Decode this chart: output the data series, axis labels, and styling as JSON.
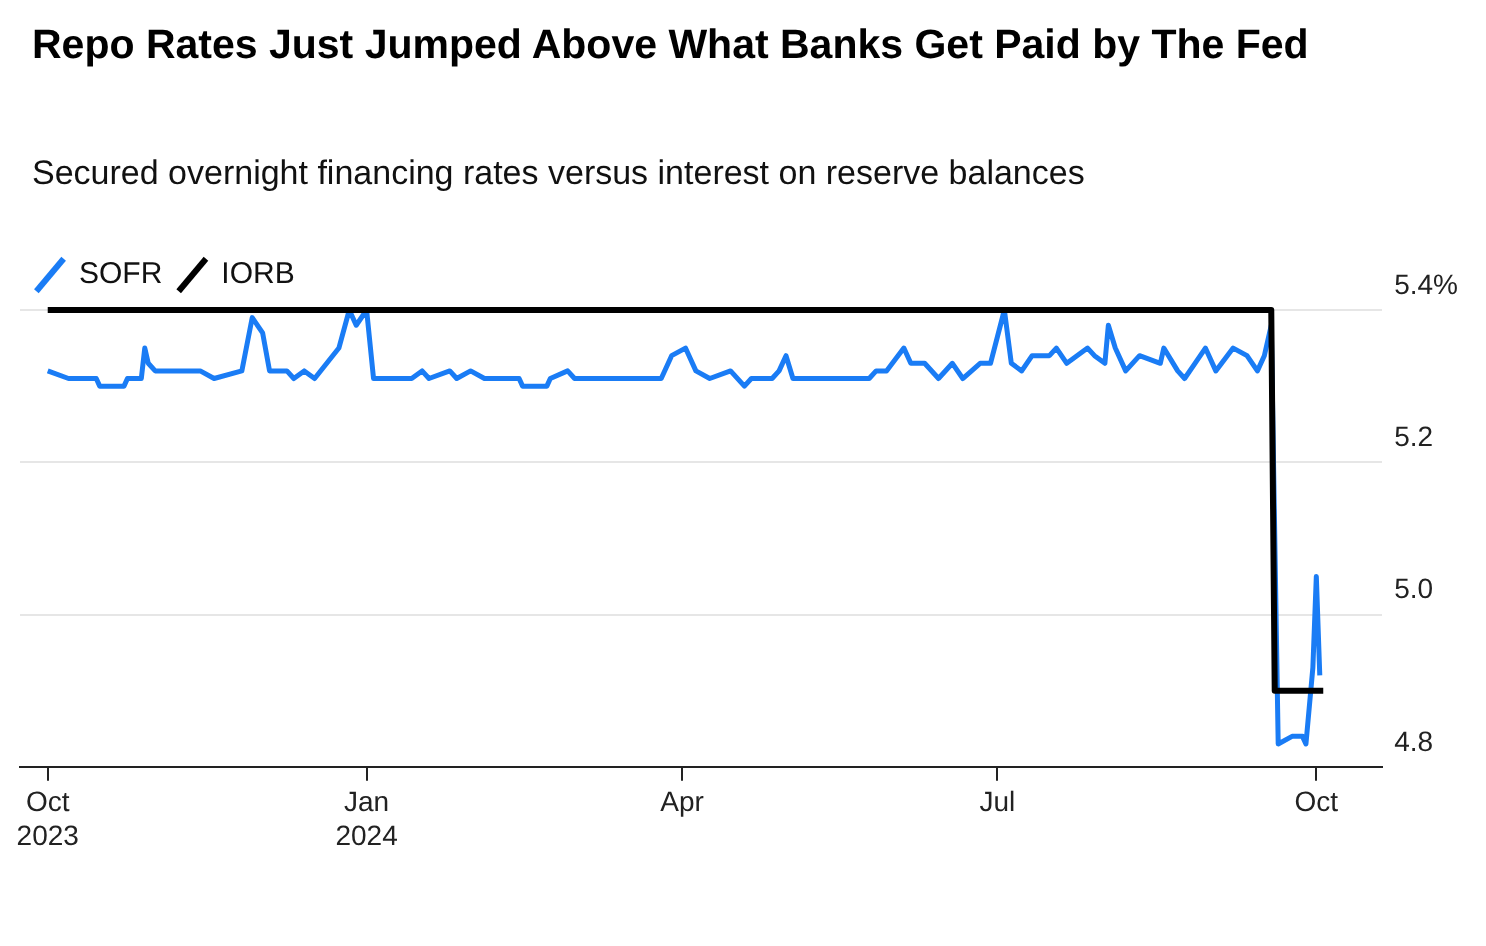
{
  "chart_data": {
    "type": "line",
    "title": "Repo Rates Just Jumped Above What Banks Get Paid by The Fed",
    "subtitle": "Secured overnight financing rates versus interest on reserve balances",
    "legend": "top left",
    "grid": "y",
    "marker": "none",
    "xlim": [
      "2023-09-23",
      "2024-10-20"
    ],
    "xticks": [
      {
        "value": "2023-10-01",
        "label": "Oct\n2023"
      },
      {
        "value": "2024-01-01",
        "label": "Jan\n2024"
      },
      {
        "value": "2024-04-01",
        "label": "Apr"
      },
      {
        "value": "2024-07-01",
        "label": "Jul"
      },
      {
        "value": "2024-10-01",
        "label": "Oct"
      }
    ],
    "ylim": [
      4.8,
      5.4
    ],
    "yticks": [
      4.8,
      {
        "value": 5,
        "label": "5.0"
      },
      5.2,
      {
        "value": 5.4,
        "label": "5.4%"
      }
    ],
    "series": [
      {
        "name": "SOFR",
        "color": "#1a7cf5",
        "x": [
          "2023-10-01",
          "2023-10-07",
          "2023-10-15",
          "2023-10-16",
          "2023-10-23",
          "2023-10-24",
          "2023-10-28",
          "2023-10-29",
          "2023-10-30",
          "2023-11-01",
          "2023-11-14",
          "2023-11-18",
          "2023-11-26",
          "2023-11-29",
          "2023-12-02",
          "2023-12-04",
          "2023-12-09",
          "2023-12-11",
          "2023-12-14",
          "2023-12-17",
          "2023-12-24",
          "2023-12-27",
          "2023-12-29",
          "2024-01-01",
          "2024-01-03",
          "2024-01-14",
          "2024-01-17",
          "2024-01-19",
          "2024-01-25",
          "2024-01-27",
          "2024-01-31",
          "2024-02-04",
          "2024-02-14",
          "2024-02-15",
          "2024-02-22",
          "2024-02-23",
          "2024-02-28",
          "2024-03-01",
          "2024-03-26",
          "2024-03-29",
          "2024-04-02",
          "2024-04-05",
          "2024-04-09",
          "2024-04-15",
          "2024-04-19",
          "2024-04-21",
          "2024-04-27",
          "2024-04-29",
          "2024-05-01",
          "2024-05-03",
          "2024-05-25",
          "2024-05-27",
          "2024-05-30",
          "2024-06-04",
          "2024-06-06",
          "2024-06-10",
          "2024-06-14",
          "2024-06-18",
          "2024-06-21",
          "2024-06-26",
          "2024-06-29",
          "2024-07-03",
          "2024-07-05",
          "2024-07-08",
          "2024-07-11",
          "2024-07-16",
          "2024-07-18",
          "2024-07-21",
          "2024-07-27",
          "2024-07-29",
          "2024-08-01",
          "2024-08-02",
          "2024-08-04",
          "2024-08-07",
          "2024-08-11",
          "2024-08-17",
          "2024-08-18",
          "2024-08-22",
          "2024-08-24",
          "2024-08-27",
          "2024-08-30",
          "2024-09-02",
          "2024-09-07",
          "2024-09-11",
          "2024-09-14",
          "2024-09-16",
          "2024-09-18",
          "2024-09-20",
          "2024-09-24",
          "2024-09-27",
          "2024-09-28",
          "2024-09-30",
          "2024-10-01",
          "2024-10-02"
        ],
        "values": [
          5.32,
          5.31,
          5.31,
          5.3,
          5.3,
          5.31,
          5.31,
          5.35,
          5.33,
          5.32,
          5.32,
          5.31,
          5.32,
          5.39,
          5.37,
          5.32,
          5.32,
          5.31,
          5.32,
          5.31,
          5.35,
          5.4,
          5.38,
          5.4,
          5.31,
          5.31,
          5.32,
          5.31,
          5.32,
          5.31,
          5.32,
          5.31,
          5.31,
          5.3,
          5.3,
          5.31,
          5.32,
          5.31,
          5.31,
          5.34,
          5.35,
          5.32,
          5.31,
          5.32,
          5.3,
          5.31,
          5.31,
          5.32,
          5.34,
          5.31,
          5.31,
          5.32,
          5.32,
          5.35,
          5.33,
          5.33,
          5.31,
          5.33,
          5.31,
          5.33,
          5.33,
          5.4,
          5.33,
          5.32,
          5.34,
          5.34,
          5.35,
          5.33,
          5.35,
          5.34,
          5.33,
          5.38,
          5.35,
          5.32,
          5.34,
          5.33,
          5.35,
          5.32,
          5.31,
          5.33,
          5.35,
          5.32,
          5.35,
          5.34,
          5.32,
          5.34,
          5.38,
          4.83,
          4.84,
          4.84,
          4.83,
          4.93,
          5.05,
          4.92
        ]
      },
      {
        "name": "IORB",
        "color": "#000000",
        "x": [
          "2023-10-01",
          "2024-09-18",
          "2024-09-19",
          "2024-10-03"
        ],
        "values": [
          5.4,
          5.4,
          4.9,
          4.9
        ]
      }
    ]
  }
}
